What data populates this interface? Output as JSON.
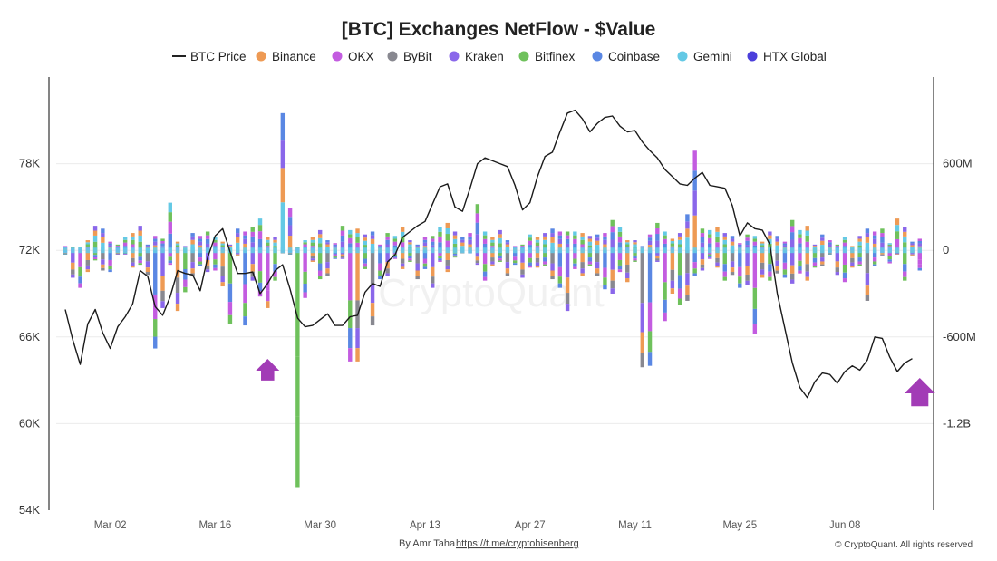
{
  "chart_data": {
    "type": "bar",
    "title": "[BTC] Exchanges NetFlow - $Value",
    "left_axis": {
      "ticks": [
        "54K",
        "60K",
        "66K",
        "72K",
        "78K"
      ],
      "tick_values": [
        54000,
        60000,
        66000,
        72000,
        78000
      ],
      "ylim": [
        54000,
        84000
      ]
    },
    "right_axis": {
      "ticks": [
        "600M",
        "0",
        "-600M",
        "-1.2B"
      ],
      "tick_values": [
        600000000,
        0,
        -600000000,
        -1200000000
      ],
      "ylim": [
        -1800000000,
        1200000000
      ]
    },
    "x_ticks": [
      "Mar 02",
      "Mar 30",
      "Apr 13",
      "Apr 27",
      "May 11",
      "May 25",
      "Jun 08"
    ],
    "x_ticks_all": [
      "Mar 02",
      "Mar 16",
      "Mar 30",
      "Apr 13",
      "Apr 27",
      "May 11",
      "May 25",
      "Jun 08"
    ],
    "x_tick_days": [
      6,
      20,
      34,
      48,
      62,
      76,
      90,
      104
    ],
    "n_days": 115,
    "legend_position": "top",
    "grid": "horizontal",
    "series": [
      {
        "name": "BTC Price",
        "type": "line",
        "color": "#222222"
      },
      {
        "name": "Binance",
        "type": "bar",
        "color": "#EE9A54"
      },
      {
        "name": "OKX",
        "type": "bar",
        "color": "#C35CE0"
      },
      {
        "name": "ByBit",
        "type": "bar",
        "color": "#888890"
      },
      {
        "name": "Kraken",
        "type": "bar",
        "color": "#8A67EA"
      },
      {
        "name": "Bitfinex",
        "type": "bar",
        "color": "#6FC15C"
      },
      {
        "name": "Coinbase",
        "type": "bar",
        "color": "#5A87E3"
      },
      {
        "name": "Gemini",
        "type": "bar",
        "color": "#64C9E5"
      },
      {
        "name": "HTX Global",
        "type": "bar",
        "color": "#4B3FDB"
      }
    ],
    "price_line": [
      [
        0,
        67900
      ],
      [
        1,
        65800
      ],
      [
        2,
        64100
      ],
      [
        3,
        66900
      ],
      [
        4,
        67900
      ],
      [
        5,
        66300
      ],
      [
        6,
        65200
      ],
      [
        7,
        66700
      ],
      [
        8,
        67400
      ],
      [
        9,
        68300
      ],
      [
        10,
        70600
      ],
      [
        11,
        70200
      ],
      [
        12,
        68100
      ],
      [
        13,
        67500
      ],
      [
        14,
        68800
      ],
      [
        15,
        70600
      ],
      [
        16,
        70400
      ],
      [
        17,
        70300
      ],
      [
        18,
        69200
      ],
      [
        19,
        71500
      ],
      [
        20,
        73000
      ],
      [
        21,
        73500
      ],
      [
        22,
        71900
      ],
      [
        23,
        70400
      ],
      [
        24,
        70400
      ],
      [
        25,
        70500
      ],
      [
        26,
        69000
      ],
      [
        27,
        69700
      ],
      [
        28,
        70600
      ],
      [
        29,
        71000
      ],
      [
        30,
        69300
      ],
      [
        31,
        67300
      ],
      [
        32,
        66700
      ],
      [
        33,
        66800
      ],
      [
        34,
        67200
      ],
      [
        35,
        67600
      ],
      [
        36,
        66800
      ],
      [
        37,
        66800
      ],
      [
        38,
        67400
      ],
      [
        39,
        67500
      ],
      [
        40,
        69100
      ],
      [
        41,
        69700
      ],
      [
        42,
        69500
      ],
      [
        43,
        71200
      ],
      [
        44,
        71700
      ],
      [
        45,
        72900
      ],
      [
        46,
        73300
      ],
      [
        47,
        73700
      ],
      [
        48,
        74000
      ],
      [
        49,
        75200
      ],
      [
        50,
        76400
      ],
      [
        51,
        76600
      ],
      [
        52,
        75000
      ],
      [
        53,
        74700
      ],
      [
        54,
        76300
      ],
      [
        55,
        78000
      ],
      [
        56,
        78400
      ],
      [
        57,
        78200
      ],
      [
        58,
        78000
      ],
      [
        59,
        77800
      ],
      [
        60,
        76500
      ],
      [
        61,
        74800
      ],
      [
        62,
        75300
      ],
      [
        63,
        77100
      ],
      [
        64,
        78500
      ],
      [
        65,
        78800
      ],
      [
        66,
        80200
      ],
      [
        67,
        81500
      ],
      [
        68,
        81700
      ],
      [
        69,
        81100
      ],
      [
        70,
        80200
      ],
      [
        71,
        80800
      ],
      [
        72,
        81200
      ],
      [
        73,
        81300
      ],
      [
        74,
        80600
      ],
      [
        75,
        80200
      ],
      [
        76,
        80300
      ],
      [
        77,
        79500
      ],
      [
        78,
        78900
      ],
      [
        79,
        78400
      ],
      [
        80,
        77600
      ],
      [
        81,
        77100
      ],
      [
        82,
        76600
      ],
      [
        83,
        76500
      ],
      [
        84,
        77000
      ],
      [
        85,
        77400
      ],
      [
        86,
        76500
      ],
      [
        87,
        76400
      ],
      [
        88,
        76300
      ],
      [
        89,
        75100
      ],
      [
        90,
        73000
      ],
      [
        91,
        73900
      ],
      [
        92,
        73500
      ],
      [
        93,
        73400
      ],
      [
        94,
        72400
      ],
      [
        95,
        69000
      ],
      [
        96,
        66600
      ],
      [
        97,
        64200
      ],
      [
        98,
        62500
      ],
      [
        99,
        61800
      ],
      [
        100,
        62900
      ],
      [
        101,
        63500
      ],
      [
        102,
        63400
      ],
      [
        103,
        62800
      ],
      [
        104,
        63600
      ],
      [
        105,
        64000
      ],
      [
        106,
        63700
      ],
      [
        107,
        64400
      ],
      [
        108,
        66000
      ],
      [
        109,
        65900
      ],
      [
        110,
        64600
      ],
      [
        111,
        63600
      ],
      [
        112,
        64200
      ],
      [
        113,
        64500
      ]
    ],
    "bars_range_usd": [
      [
        0,
        -30000000,
        30000000
      ],
      [
        1,
        -190000000,
        20000000
      ],
      [
        2,
        -260000000,
        20000000
      ],
      [
        3,
        -150000000,
        70000000
      ],
      [
        4,
        -70000000,
        170000000
      ],
      [
        5,
        -140000000,
        150000000
      ],
      [
        6,
        -150000000,
        60000000
      ],
      [
        7,
        -30000000,
        40000000
      ],
      [
        8,
        -30000000,
        90000000
      ],
      [
        9,
        -120000000,
        120000000
      ],
      [
        10,
        -100000000,
        170000000
      ],
      [
        11,
        -170000000,
        40000000
      ],
      [
        12,
        -680000000,
        100000000
      ],
      [
        13,
        -400000000,
        80000000
      ],
      [
        14,
        -100000000,
        330000000
      ],
      [
        15,
        -420000000,
        60000000
      ],
      [
        16,
        -290000000,
        30000000
      ],
      [
        17,
        -180000000,
        120000000
      ],
      [
        18,
        -110000000,
        100000000
      ],
      [
        19,
        -150000000,
        130000000
      ],
      [
        20,
        -140000000,
        90000000
      ],
      [
        21,
        -250000000,
        60000000
      ],
      [
        22,
        -510000000,
        40000000
      ],
      [
        23,
        -40000000,
        150000000
      ],
      [
        24,
        -520000000,
        130000000
      ],
      [
        25,
        -210000000,
        160000000
      ],
      [
        26,
        -320000000,
        220000000
      ],
      [
        27,
        -400000000,
        90000000
      ],
      [
        28,
        -210000000,
        90000000
      ],
      [
        29,
        -20000000,
        950000000
      ],
      [
        30,
        -30000000,
        290000000
      ],
      [
        31,
        -1640000000,
        20000000
      ],
      [
        32,
        -330000000,
        70000000
      ],
      [
        33,
        -80000000,
        90000000
      ],
      [
        34,
        -200000000,
        140000000
      ],
      [
        35,
        -180000000,
        70000000
      ],
      [
        36,
        -60000000,
        50000000
      ],
      [
        37,
        -60000000,
        170000000
      ],
      [
        38,
        -770000000,
        140000000
      ],
      [
        39,
        -770000000,
        150000000
      ],
      [
        40,
        -130000000,
        110000000
      ],
      [
        41,
        -520000000,
        130000000
      ],
      [
        42,
        -200000000,
        40000000
      ],
      [
        43,
        -180000000,
        120000000
      ],
      [
        44,
        -60000000,
        100000000
      ],
      [
        45,
        -130000000,
        160000000
      ],
      [
        46,
        -80000000,
        70000000
      ],
      [
        47,
        -200000000,
        40000000
      ],
      [
        48,
        -130000000,
        90000000
      ],
      [
        49,
        -260000000,
        100000000
      ],
      [
        50,
        -80000000,
        160000000
      ],
      [
        51,
        -150000000,
        190000000
      ],
      [
        52,
        -50000000,
        130000000
      ],
      [
        53,
        -20000000,
        90000000
      ],
      [
        54,
        -20000000,
        120000000
      ],
      [
        55,
        -100000000,
        320000000
      ],
      [
        56,
        -210000000,
        130000000
      ],
      [
        57,
        -110000000,
        90000000
      ],
      [
        58,
        -80000000,
        140000000
      ],
      [
        59,
        -180000000,
        70000000
      ],
      [
        60,
        -100000000,
        30000000
      ],
      [
        61,
        -190000000,
        40000000
      ],
      [
        62,
        -120000000,
        110000000
      ],
      [
        63,
        -120000000,
        90000000
      ],
      [
        64,
        -110000000,
        120000000
      ],
      [
        65,
        -200000000,
        150000000
      ],
      [
        66,
        -260000000,
        130000000
      ],
      [
        67,
        -420000000,
        130000000
      ],
      [
        68,
        -130000000,
        130000000
      ],
      [
        69,
        -180000000,
        120000000
      ],
      [
        70,
        -110000000,
        100000000
      ],
      [
        71,
        -180000000,
        110000000
      ],
      [
        72,
        -270000000,
        120000000
      ],
      [
        73,
        -300000000,
        210000000
      ],
      [
        74,
        -150000000,
        160000000
      ],
      [
        75,
        -220000000,
        70000000
      ],
      [
        76,
        -80000000,
        70000000
      ],
      [
        77,
        -810000000,
        30000000
      ],
      [
        78,
        -800000000,
        110000000
      ],
      [
        79,
        -80000000,
        190000000
      ],
      [
        80,
        -490000000,
        130000000
      ],
      [
        81,
        -300000000,
        80000000
      ],
      [
        82,
        -380000000,
        120000000
      ],
      [
        83,
        -350000000,
        250000000
      ],
      [
        84,
        -180000000,
        690000000
      ],
      [
        85,
        -140000000,
        150000000
      ],
      [
        86,
        -60000000,
        140000000
      ],
      [
        87,
        -120000000,
        160000000
      ],
      [
        88,
        -210000000,
        120000000
      ],
      [
        89,
        -170000000,
        100000000
      ],
      [
        90,
        -260000000,
        50000000
      ],
      [
        91,
        -240000000,
        110000000
      ],
      [
        92,
        -580000000,
        100000000
      ],
      [
        93,
        -190000000,
        60000000
      ],
      [
        94,
        -210000000,
        130000000
      ],
      [
        95,
        -160000000,
        100000000
      ],
      [
        96,
        -190000000,
        60000000
      ],
      [
        97,
        -230000000,
        210000000
      ],
      [
        98,
        -160000000,
        140000000
      ],
      [
        99,
        -210000000,
        170000000
      ],
      [
        100,
        -120000000,
        40000000
      ],
      [
        101,
        -110000000,
        110000000
      ],
      [
        102,
        -30000000,
        70000000
      ],
      [
        103,
        -170000000,
        40000000
      ],
      [
        104,
        -220000000,
        90000000
      ],
      [
        105,
        -120000000,
        30000000
      ],
      [
        106,
        -110000000,
        100000000
      ],
      [
        107,
        -350000000,
        150000000
      ],
      [
        108,
        -110000000,
        130000000
      ],
      [
        109,
        -40000000,
        150000000
      ],
      [
        110,
        -90000000,
        50000000
      ],
      [
        111,
        -30000000,
        220000000
      ],
      [
        112,
        -210000000,
        160000000
      ],
      [
        113,
        -40000000,
        60000000
      ],
      [
        114,
        -140000000,
        80000000
      ]
    ],
    "annotations": [
      {
        "label": "arrow-up-1",
        "day": 27,
        "color": "#A23CB6"
      },
      {
        "label": "arrow-up-2",
        "day": 114,
        "color": "#A23CB6"
      }
    ]
  },
  "watermark": "CryptoQuant",
  "credit": {
    "by_text": "By Amr Taha",
    "link_text": "https://t.me/cryptohisenberg"
  },
  "copyright": "© CryptoQuant. All rights reserved"
}
